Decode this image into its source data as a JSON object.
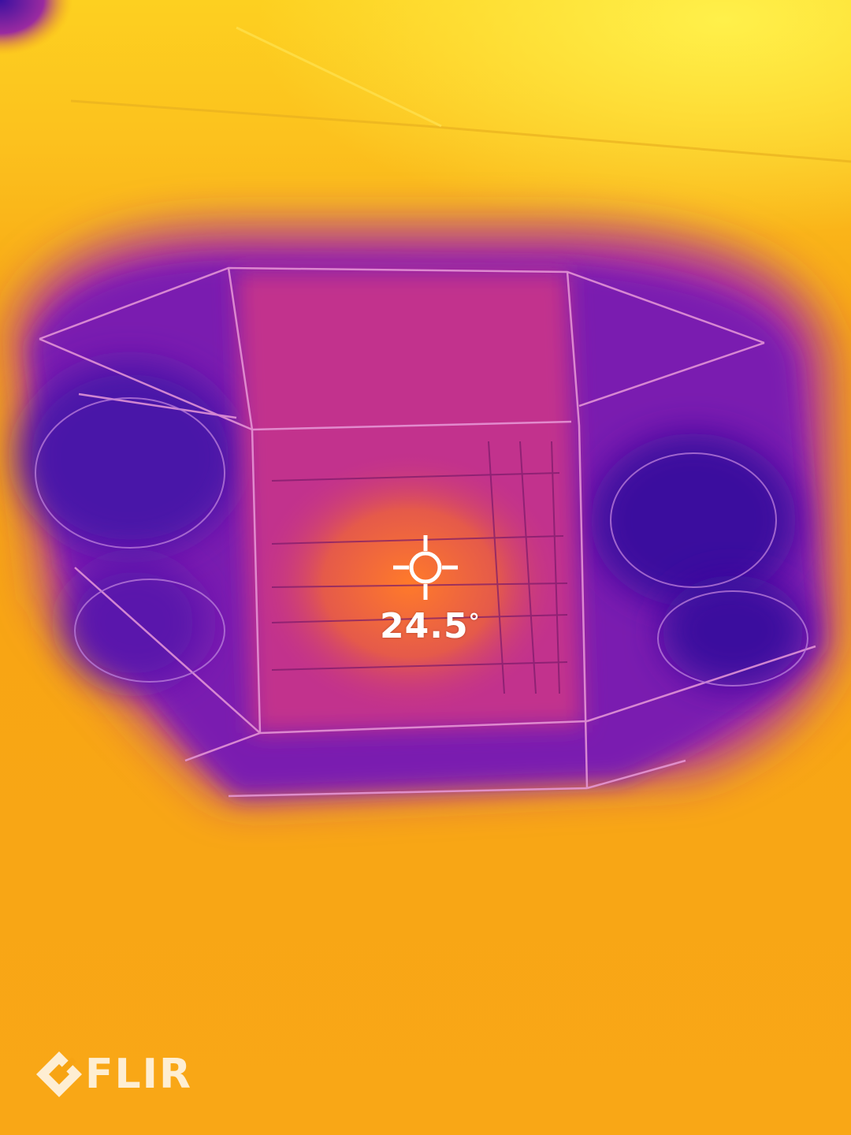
{
  "measurement": {
    "value": "24.5",
    "unit_symbol": "°"
  },
  "branding": {
    "logo_text": "FLIR"
  },
  "palette": {
    "hot": "#ffe23a",
    "warm": "#f7a413",
    "mid": "#c2308d",
    "cool": "#7a1fb0",
    "cold": "#3a0f9e",
    "crosshair": "#ffffff"
  },
  "icons": [
    "crosshair-icon",
    "flir-logo-icon"
  ]
}
